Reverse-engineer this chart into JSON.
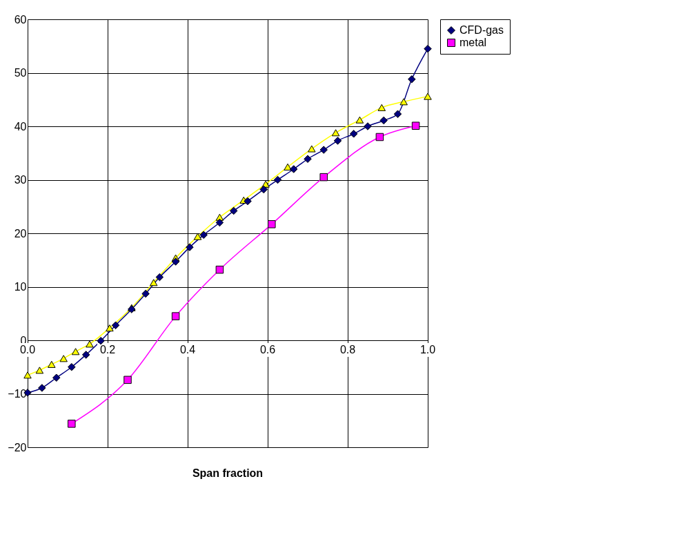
{
  "chart_data": {
    "type": "line",
    "xlabel": "Span fraction",
    "xlim": [
      0,
      1
    ],
    "xticks": [
      {
        "value": 0,
        "label": "0.0"
      },
      {
        "value": 0.2,
        "label": "0.2"
      },
      {
        "value": 0.4,
        "label": "0.4"
      },
      {
        "value": 0.6,
        "label": "0.6"
      },
      {
        "value": 0.8,
        "label": "0.8"
      },
      {
        "value": 1,
        "label": "1.0"
      }
    ],
    "ylim": [
      -20,
      60
    ],
    "yticks": [
      -20,
      -10,
      0,
      10,
      20,
      30,
      40,
      50,
      60
    ],
    "grid": true,
    "legend": "right",
    "series": [
      {
        "name": "CFD-gas",
        "color": "#000080",
        "marker": "diamond",
        "x": [
          0.0,
          0.036,
          0.072,
          0.11,
          0.146,
          0.183,
          0.22,
          0.26,
          0.295,
          0.33,
          0.37,
          0.405,
          0.44,
          0.48,
          0.515,
          0.55,
          0.59,
          0.625,
          0.665,
          0.7,
          0.74,
          0.775,
          0.815,
          0.85,
          0.89,
          0.925,
          0.96,
          1.0
        ],
        "values": [
          -9.8,
          -8.9,
          -7.0,
          -5.0,
          -2.7,
          -0.1,
          2.8,
          5.8,
          8.7,
          11.8,
          14.7,
          17.4,
          19.7,
          22.0,
          24.2,
          26.0,
          28.2,
          30.0,
          32.0,
          33.9,
          35.6,
          37.3,
          38.6,
          40.0,
          41.1,
          42.3,
          48.8,
          54.5
        ]
      },
      {
        "name": "metal",
        "color": "#ff00ff",
        "marker": "square",
        "x": [
          0.11,
          0.25,
          0.37,
          0.48,
          0.61,
          0.74,
          0.88,
          0.97
        ],
        "values": [
          -15.6,
          -7.4,
          4.5,
          13.2,
          21.7,
          30.5,
          38.0,
          40.1
        ]
      },
      {
        "color": "#ffff00",
        "marker": "triangle",
        "x": [
          0.0,
          0.03,
          0.06,
          0.09,
          0.12,
          0.155,
          0.205,
          0.26,
          0.315,
          0.37,
          0.425,
          0.48,
          0.54,
          0.595,
          0.65,
          0.71,
          0.77,
          0.83,
          0.885,
          0.94,
          1.0
        ],
        "values": [
          -6.5,
          -5.6,
          -4.5,
          -3.4,
          -2.1,
          -0.7,
          2.3,
          6.1,
          10.8,
          15.4,
          19.4,
          23.0,
          26.2,
          29.2,
          32.4,
          35.8,
          38.8,
          41.2,
          43.5,
          44.6,
          45.6
        ]
      }
    ]
  }
}
